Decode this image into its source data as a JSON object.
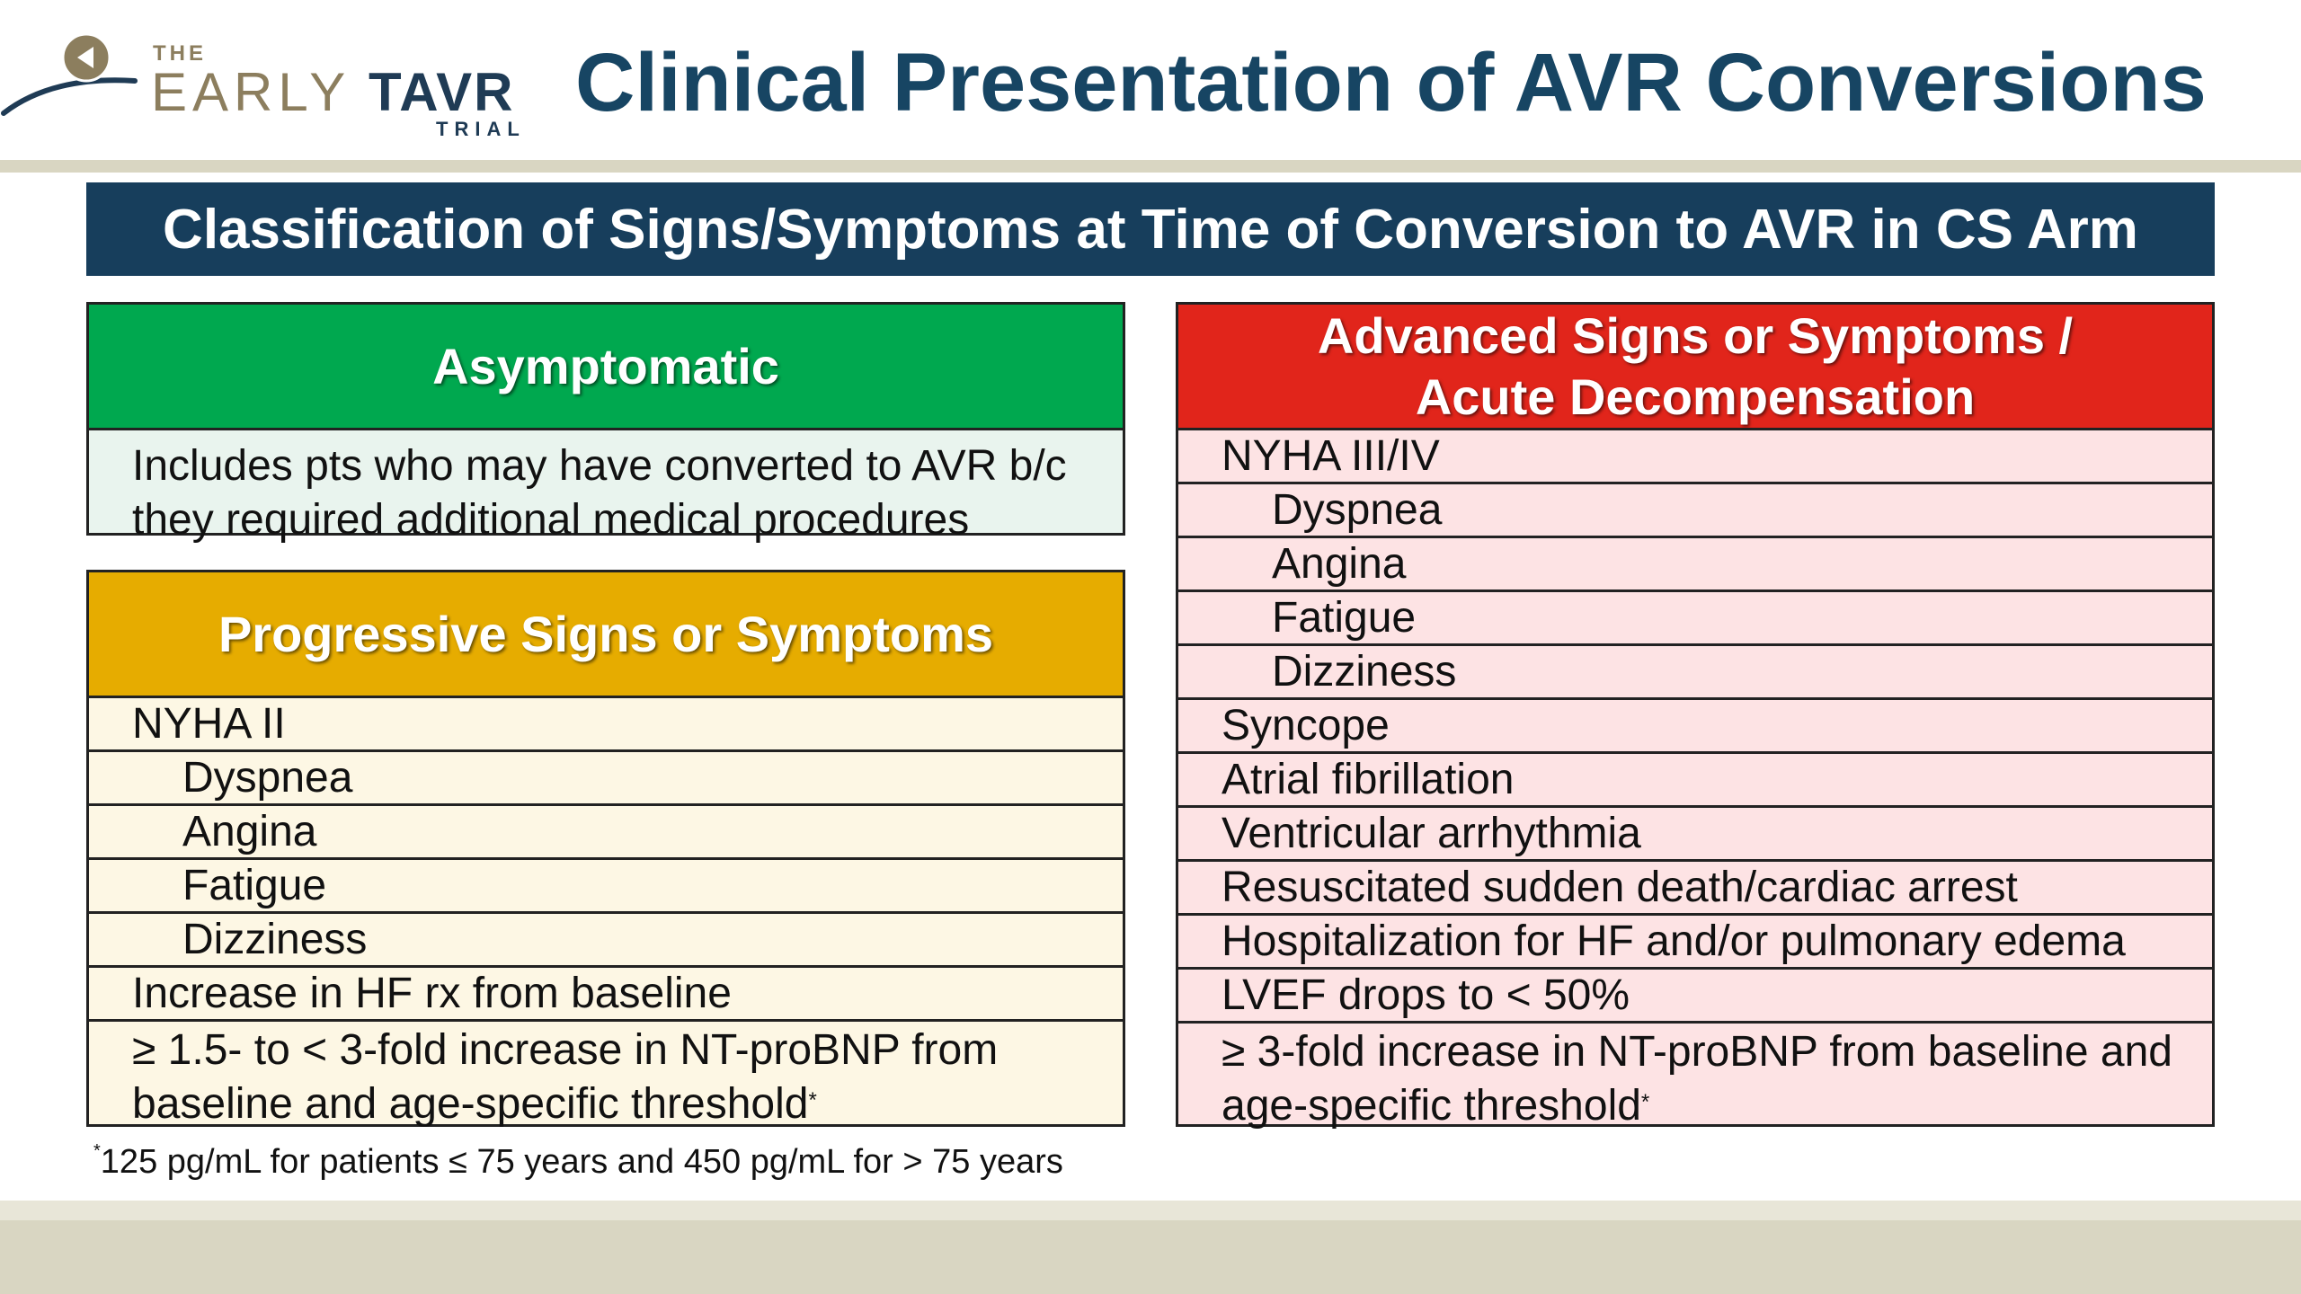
{
  "logo": {
    "the": "THE",
    "early": "EARLY",
    "tavr": "TAVR",
    "trial": "TRIAL"
  },
  "title": "Clinical Presentation of AVR Conversions",
  "banner": "Classification of Signs/Symptoms at Time of Conversion to AVR in CS Arm",
  "asymptomatic": {
    "heading": "Asymptomatic",
    "body": "Includes pts who may have converted to AVR b/c they required additional medical procedures"
  },
  "progressive": {
    "heading": "Progressive Signs or Symptoms",
    "rows": [
      "NYHA II",
      "Dyspnea",
      "Angina",
      "Fatigue",
      "Dizziness",
      "Increase in HF rx from baseline",
      "≥ 1.5- to < 3-fold increase in NT-proBNP from baseline and age-specific threshold"
    ],
    "footnote_marker": "*"
  },
  "advanced": {
    "heading_line1": "Advanced Signs or Symptoms /",
    "heading_line2": "Acute Decompensation",
    "rows": [
      "NYHA III/IV",
      "Dyspnea",
      "Angina",
      "Fatigue",
      "Dizziness",
      "Syncope",
      "Atrial fibrillation",
      "Ventricular arrhythmia",
      "Resuscitated sudden death/cardiac arrest",
      "Hospitalization for HF and/or pulmonary edema",
      "LVEF drops to < 50%",
      "≥ 3-fold increase in NT-proBNP from baseline and age-specific threshold"
    ],
    "footnote_marker": "*"
  },
  "footnote": {
    "marker": "*",
    "text": "125 pg/mL for patients ≤ 75 years and 450 pg/mL for > 75 years"
  },
  "colors": {
    "title": "#174563",
    "banner": "#173e5c",
    "asymptomatic_head": "#00a84f",
    "asymptomatic_body": "#e9f4ee",
    "progressive_head": "#e6ac00",
    "progressive_body": "#fdf7e4",
    "advanced_head": "#e1251b",
    "advanced_body": "#fde3e4",
    "bottom_band": "#d9d6c2"
  }
}
